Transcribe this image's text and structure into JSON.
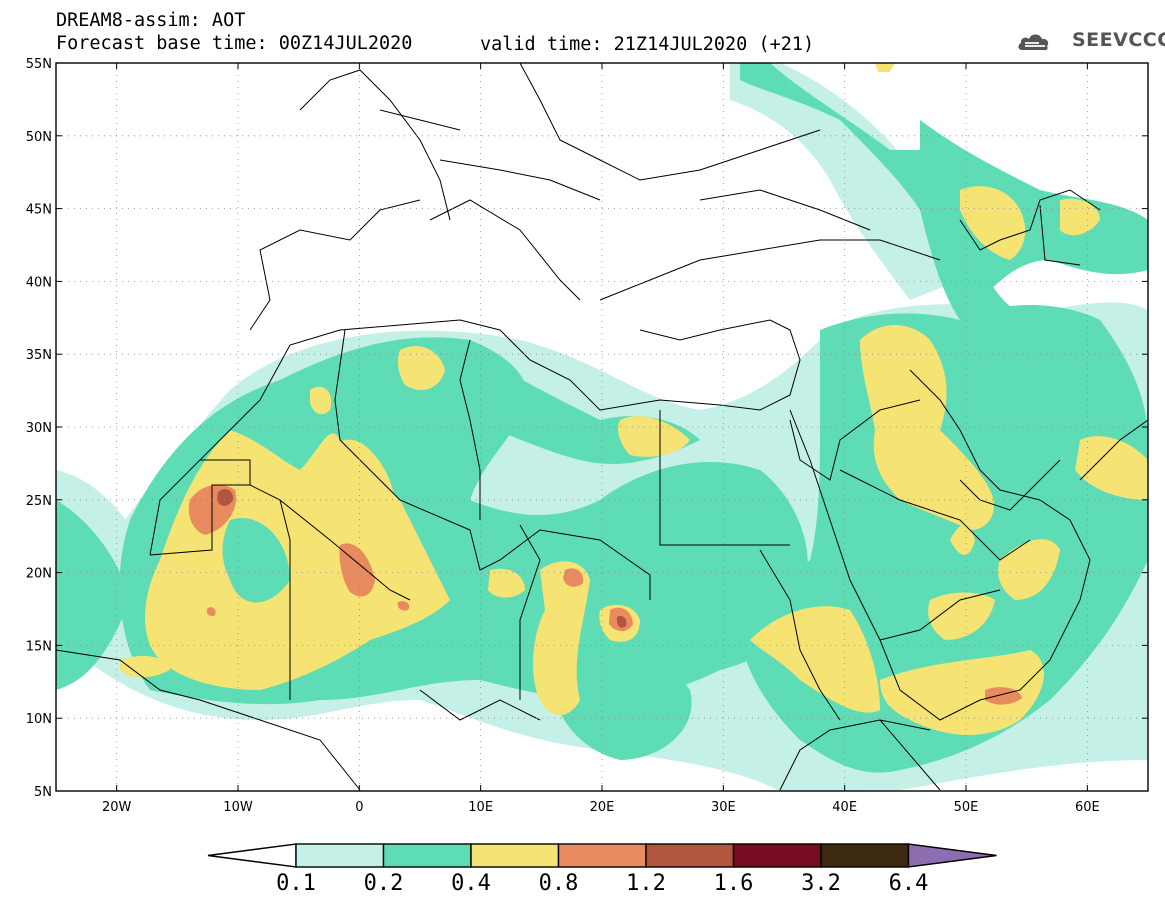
{
  "header": {
    "line1": "DREAM8-assim: AOT",
    "line2": "Forecast base time: 00Z14JUL2020",
    "valid": "valid time: 21Z14JUL2020 (+21)"
  },
  "logo": {
    "text": "SEEVCCC",
    "icon": "cloud-logo-icon"
  },
  "map": {
    "lat_ticks": [
      "55N",
      "50N",
      "45N",
      "40N",
      "35N",
      "30N",
      "25N",
      "20N",
      "15N",
      "10N",
      "5N"
    ],
    "lon_ticks": [
      "20W",
      "10W",
      "0",
      "10E",
      "20E",
      "30E",
      "40E",
      "50E",
      "60E"
    ],
    "extent": {
      "lon": [
        -25,
        65
      ],
      "lat": [
        5,
        55
      ]
    }
  },
  "colorbar": {
    "labels": [
      "0.1",
      "0.2",
      "0.4",
      "0.8",
      "1.2",
      "1.6",
      "3.2",
      "6.4"
    ],
    "colors": [
      "#c4f0e8",
      "#5ddcb6",
      "#f5e473",
      "#e88b5e",
      "#b2553e",
      "#760d24",
      "#3e2a12"
    ],
    "over_color": "#8e6cb0",
    "under_color": "#ffffff"
  },
  "palette": {
    "level1": "#c4f0e8",
    "level2": "#5ddcb6",
    "level3": "#f5e473",
    "level4": "#e88b5e",
    "level5": "#b2553e"
  }
}
